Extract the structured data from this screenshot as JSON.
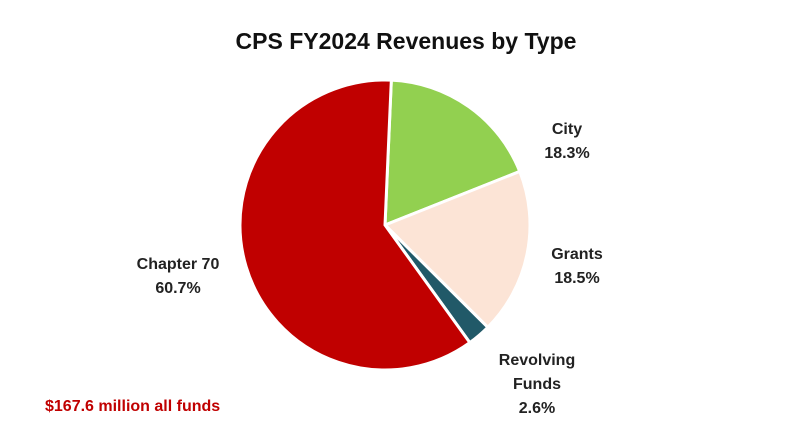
{
  "chart_data": {
    "type": "pie",
    "title": "CPS FY2024 Revenues by Type",
    "categories": [
      "City",
      "Grants",
      "Revolving Funds",
      "Chapter 70"
    ],
    "values": [
      18.3,
      18.5,
      2.6,
      60.7
    ],
    "value_labels": [
      "18.3%",
      "18.5%",
      "2.6%",
      "60.7%"
    ],
    "colors": [
      "#92d050",
      "#fce4d6",
      "#215968",
      "#c00000"
    ],
    "annotation": "$167.6 million all funds"
  }
}
